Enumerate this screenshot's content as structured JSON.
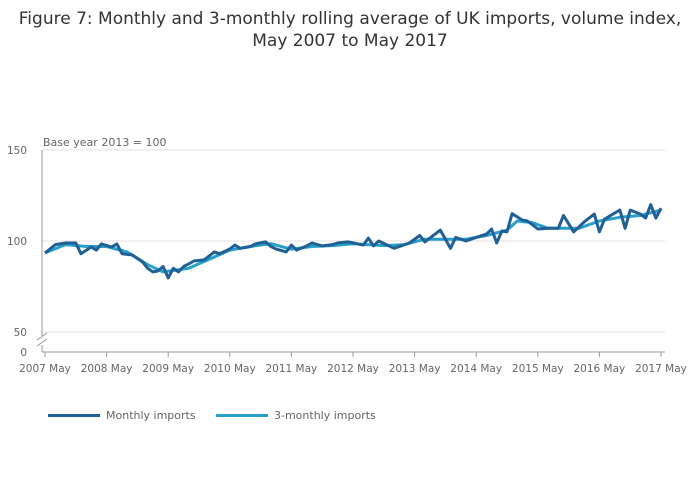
{
  "chart_data": {
    "type": "line",
    "title": "Figure 7: Monthly and 3-monthly rolling average of UK imports, volume index, May 2007 to May 2017",
    "annotation": "Base year 2013 = 100",
    "xlabel": "",
    "ylabel": "",
    "ylim": [
      0,
      150
    ],
    "yticks": [
      0,
      50,
      100,
      150
    ],
    "y_axis_break": true,
    "xticks": [
      "2007 May",
      "2008 May",
      "2009 May",
      "2010 May",
      "2011 May",
      "2012 May",
      "2013 May",
      "2014 May",
      "2015 May",
      "2016 May",
      "2017 May"
    ],
    "grid": true,
    "legend": "bottom-left",
    "series": [
      {
        "name": "Monthly imports",
        "color": "#206095",
        "points": [
          [
            "2007-05",
            93.4
          ],
          [
            "2007-07",
            98
          ],
          [
            "2007-09",
            98.9
          ],
          [
            "2007-11",
            98.9
          ],
          [
            "2007-12",
            93
          ],
          [
            "2008-02",
            96.7
          ],
          [
            "2008-03",
            95
          ],
          [
            "2008-04",
            98.4
          ],
          [
            "2008-06",
            96.7
          ],
          [
            "2008-07",
            98.4
          ],
          [
            "2008-08",
            93
          ],
          [
            "2008-10",
            92.3
          ],
          [
            "2008-12",
            88.5
          ],
          [
            "2009-01",
            85
          ],
          [
            "2009-02",
            83
          ],
          [
            "2009-03",
            83.5
          ],
          [
            "2009-04",
            86
          ],
          [
            "2009-05",
            79.7
          ],
          [
            "2009-06",
            85
          ],
          [
            "2009-07",
            83
          ],
          [
            "2009-08",
            86
          ],
          [
            "2009-09",
            87.4
          ],
          [
            "2009-10",
            89
          ],
          [
            "2009-12",
            89.6
          ],
          [
            "2010-02",
            94
          ],
          [
            "2010-03",
            93
          ],
          [
            "2010-05",
            95.6
          ],
          [
            "2010-06",
            97.8
          ],
          [
            "2010-07",
            96
          ],
          [
            "2010-09",
            97
          ],
          [
            "2010-10",
            98.4
          ],
          [
            "2010-12",
            99.5
          ],
          [
            "2011-01",
            97
          ],
          [
            "2011-02",
            95.6
          ],
          [
            "2011-04",
            94
          ],
          [
            "2011-05",
            97.8
          ],
          [
            "2011-06",
            95
          ],
          [
            "2011-08",
            97.3
          ],
          [
            "2011-09",
            98.9
          ],
          [
            "2011-11",
            97.3
          ],
          [
            "2012-01",
            98
          ],
          [
            "2012-02",
            98.9
          ],
          [
            "2012-04",
            99.5
          ],
          [
            "2012-07",
            97.8
          ],
          [
            "2012-08",
            101.6
          ],
          [
            "2012-09",
            97.3
          ],
          [
            "2012-10",
            100
          ],
          [
            "2013-01",
            96
          ],
          [
            "2013-04",
            98.9
          ],
          [
            "2013-06",
            103
          ],
          [
            "2013-07",
            99.5
          ],
          [
            "2013-10",
            106
          ],
          [
            "2013-12",
            96
          ],
          [
            "2014-01",
            102
          ],
          [
            "2014-03",
            100
          ],
          [
            "2014-05",
            102
          ],
          [
            "2014-07",
            103.8
          ],
          [
            "2014-08",
            106.6
          ],
          [
            "2014-09",
            98.9
          ],
          [
            "2014-10",
            105.5
          ],
          [
            "2014-11",
            105
          ],
          [
            "2014-12",
            115
          ],
          [
            "2015-02",
            111.5
          ],
          [
            "2015-03",
            111
          ],
          [
            "2015-05",
            106.6
          ],
          [
            "2015-07",
            107
          ],
          [
            "2015-09",
            107
          ],
          [
            "2015-10",
            114
          ],
          [
            "2015-12",
            105
          ],
          [
            "2016-02",
            110.4
          ],
          [
            "2016-04",
            114.8
          ],
          [
            "2016-05",
            105
          ],
          [
            "2016-06",
            112
          ],
          [
            "2016-08",
            115.4
          ],
          [
            "2016-09",
            117
          ],
          [
            "2016-10",
            107
          ],
          [
            "2016-11",
            117
          ],
          [
            "2017-01",
            114.8
          ],
          [
            "2017-02",
            112.6
          ],
          [
            "2017-03",
            120
          ],
          [
            "2017-04",
            112.6
          ],
          [
            "2017-05",
            118
          ]
        ]
      },
      {
        "name": "3-monthly imports",
        "color": "#27a0cc",
        "points": [
          [
            "2007-05",
            93.5
          ],
          [
            "2007-09",
            98
          ],
          [
            "2008-01",
            97
          ],
          [
            "2008-05",
            97
          ],
          [
            "2008-09",
            94
          ],
          [
            "2009-01",
            87
          ],
          [
            "2009-04",
            83
          ],
          [
            "2009-09",
            85
          ],
          [
            "2010-01",
            90
          ],
          [
            "2010-05",
            95
          ],
          [
            "2010-09",
            97
          ],
          [
            "2011-01",
            98.5
          ],
          [
            "2011-05",
            95.5
          ],
          [
            "2011-09",
            97
          ],
          [
            "2012-01",
            97.5
          ],
          [
            "2012-05",
            98.5
          ],
          [
            "2012-11",
            97.5
          ],
          [
            "2013-03",
            98
          ],
          [
            "2013-07",
            101
          ],
          [
            "2013-11",
            101
          ],
          [
            "2014-03",
            101
          ],
          [
            "2014-07",
            103
          ],
          [
            "2014-11",
            106
          ],
          [
            "2015-01",
            111
          ],
          [
            "2015-04",
            110
          ],
          [
            "2015-07",
            107
          ],
          [
            "2015-11",
            107
          ],
          [
            "2016-01",
            107
          ],
          [
            "2016-05",
            111
          ],
          [
            "2016-09",
            113
          ],
          [
            "2017-01",
            114
          ],
          [
            "2017-05",
            117
          ]
        ]
      }
    ]
  }
}
